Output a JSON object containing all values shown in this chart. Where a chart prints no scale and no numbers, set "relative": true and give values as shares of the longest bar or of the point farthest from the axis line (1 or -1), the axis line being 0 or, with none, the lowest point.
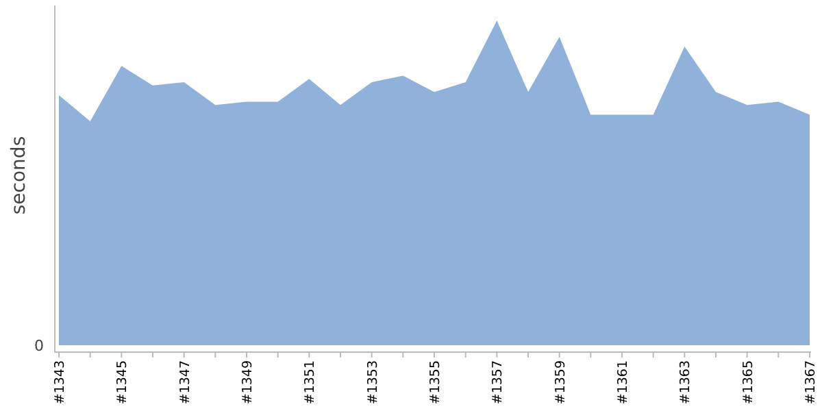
{
  "chart_data": {
    "type": "area",
    "ylabel": "seconds",
    "relative": true,
    "annotations": [
      "0"
    ],
    "color": "#8fb1da",
    "categories": [
      "#1343",
      null,
      "#1345",
      null,
      "#1347",
      null,
      "#1349",
      null,
      "#1351",
      null,
      "#1353",
      null,
      "#1355",
      null,
      "#1357",
      null,
      "#1359",
      null,
      "#1361",
      null,
      "#1363",
      null,
      "#1365",
      null,
      "#1367"
    ],
    "values": [
      0.77,
      0.69,
      0.86,
      0.8,
      0.81,
      0.74,
      0.75,
      0.75,
      0.82,
      0.74,
      0.81,
      0.83,
      0.78,
      0.81,
      1,
      0.78,
      0.95,
      0.71,
      0.71,
      0.71,
      0.92,
      0.78,
      0.74,
      0.75,
      0.71
    ]
  }
}
